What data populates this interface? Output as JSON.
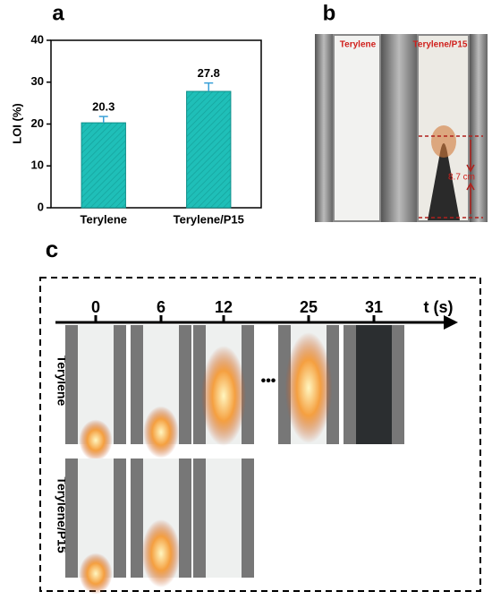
{
  "chart_data": {
    "type": "bar",
    "ylabel": "LOI (%)",
    "categories": [
      "Terylene",
      "Terylene/P15"
    ],
    "values": [
      20.3,
      27.8
    ],
    "errors": [
      1.5,
      2.0
    ],
    "color": "#1fbfb8",
    "ylim": [
      0,
      40
    ],
    "yticks": [
      0,
      10,
      20,
      30,
      40
    ],
    "grid": false
  },
  "panels": {
    "a": "a",
    "b": "b",
    "c": "c",
    "photo_labels": [
      "Terylene",
      "Terylene/P15"
    ],
    "measure": "8.7 cm",
    "times": [
      0,
      6,
      12,
      25,
      31
    ],
    "time_axis": "t (s)",
    "rows": [
      "Terylene",
      "Terylene/P15"
    ],
    "ellipsis": "•••"
  }
}
